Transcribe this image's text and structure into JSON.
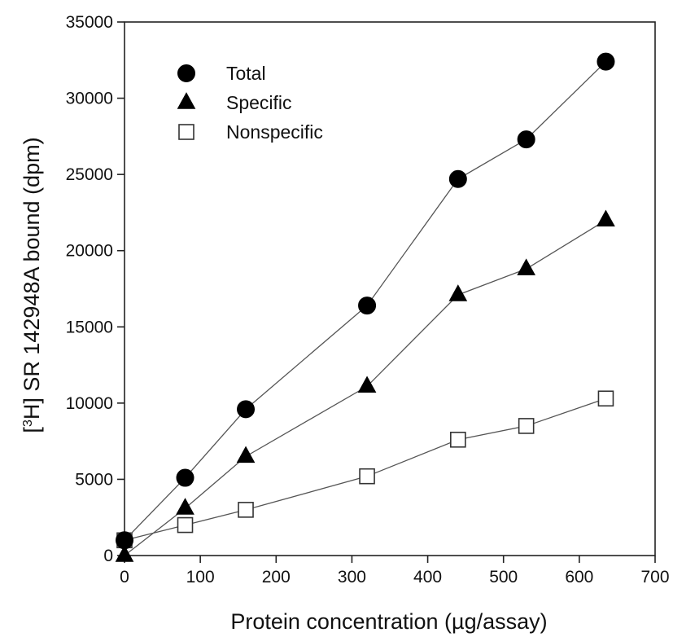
{
  "chart_data": {
    "type": "line",
    "xlabel": "Protein concentration (µg/assay)",
    "ylabel_parts": {
      "open": "[",
      "sup": "3",
      "rest": "H] SR 142948A bound (dpm)"
    },
    "xlim": [
      0,
      700
    ],
    "ylim": [
      0,
      35000
    ],
    "x_ticks": [
      "0",
      "100",
      "200",
      "300",
      "400",
      "500",
      "600",
      "700"
    ],
    "y_ticks": [
      "0",
      "5000",
      "10000",
      "15000",
      "20000",
      "25000",
      "30000",
      "35000"
    ],
    "grid": false,
    "legend_position": "top-left",
    "series": [
      {
        "name": "Total",
        "marker": "filled-circle",
        "x": [
          0,
          80,
          160,
          320,
          440,
          530,
          635
        ],
        "y": [
          1000,
          5100,
          9600,
          16400,
          24700,
          27300,
          32400
        ]
      },
      {
        "name": "Specific",
        "marker": "filled-triangle",
        "x": [
          0,
          80,
          160,
          320,
          440,
          530,
          635
        ],
        "y": [
          0,
          3100,
          6500,
          11100,
          17100,
          18800,
          22000
        ]
      },
      {
        "name": "Nonspecific",
        "marker": "open-square",
        "x": [
          0,
          80,
          160,
          320,
          440,
          530,
          635
        ],
        "y": [
          1000,
          2000,
          3000,
          5200,
          7600,
          8500,
          10300
        ]
      }
    ]
  }
}
